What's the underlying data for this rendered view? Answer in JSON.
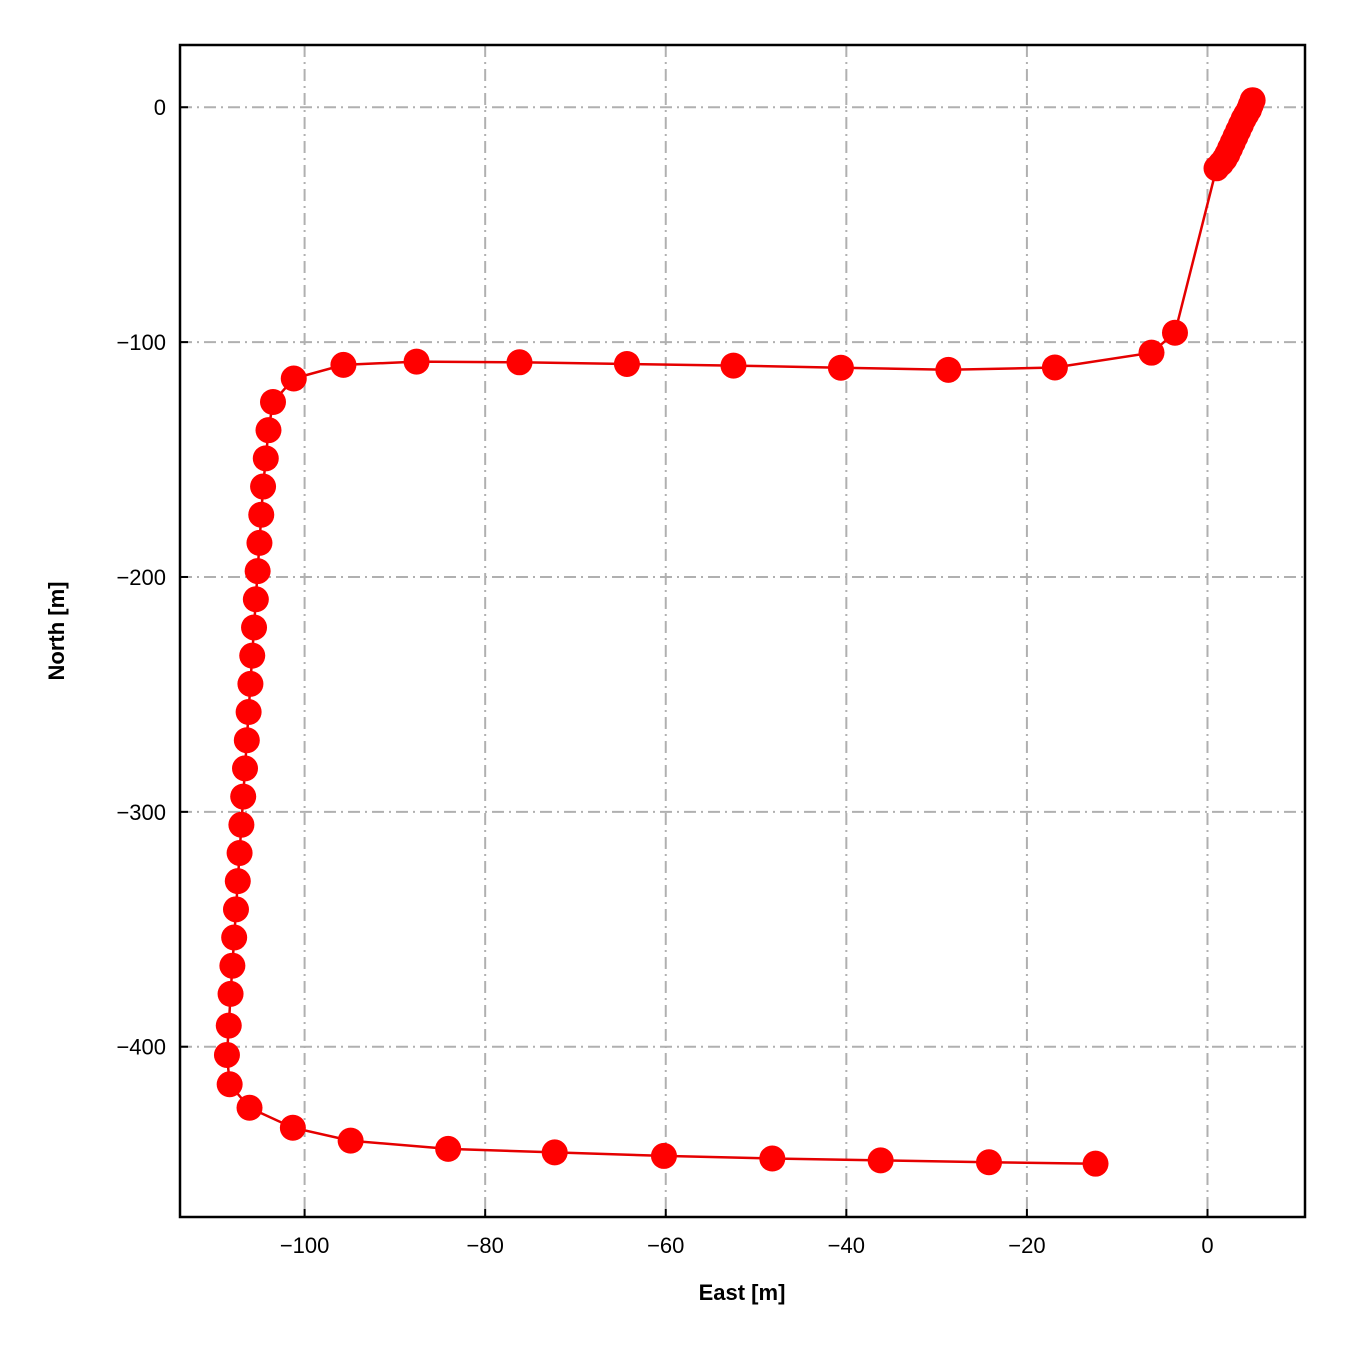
{
  "chart_data": {
    "type": "line",
    "title": "",
    "xlabel": "East [m]",
    "ylabel": "North [m]",
    "xlim": [
      -113.8,
      10.8
    ],
    "ylim": [
      -472.5,
      26.5
    ],
    "xticks": [
      -100,
      -80,
      -60,
      -40,
      -20,
      0
    ],
    "yticks": [
      0,
      -100,
      -200,
      -300,
      -400
    ],
    "xtick_labels": [
      "−100",
      "−80",
      "−60",
      "−40",
      "−20",
      "0"
    ],
    "ytick_labels": [
      "0",
      "−100",
      "−200",
      "−300",
      "−400"
    ],
    "grid": true,
    "series": [
      {
        "color": "#ff0000",
        "line_color": "#e50000",
        "marker": "circle",
        "points": [
          [
            5.0,
            3.0
          ],
          [
            4.8,
            1.0
          ],
          [
            4.6,
            -1.0
          ],
          [
            4.3,
            -3.0
          ],
          [
            4.0,
            -5.0
          ],
          [
            3.7,
            -7.5
          ],
          [
            3.4,
            -10.0
          ],
          [
            3.1,
            -12.5
          ],
          [
            2.8,
            -15.0
          ],
          [
            2.5,
            -17.5
          ],
          [
            2.2,
            -20.0
          ],
          [
            1.9,
            -22.0
          ],
          [
            1.5,
            -24.0
          ],
          [
            1.0,
            -26.0
          ],
          [
            -3.6,
            -96.0
          ],
          [
            -6.2,
            -104.5
          ],
          [
            -16.9,
            -110.8
          ],
          [
            -28.7,
            -111.8
          ],
          [
            -40.6,
            -110.9
          ],
          [
            -52.5,
            -110.0
          ],
          [
            -64.3,
            -109.3
          ],
          [
            -76.2,
            -108.6
          ],
          [
            -87.6,
            -108.3
          ],
          [
            -95.7,
            -109.7
          ],
          [
            -101.2,
            -115.5
          ],
          [
            -103.5,
            -125.5
          ],
          [
            -104.0,
            -137.5
          ],
          [
            -104.3,
            -149.5
          ],
          [
            -104.6,
            -161.5
          ],
          [
            -104.8,
            -173.5
          ],
          [
            -105.0,
            -185.5
          ],
          [
            -105.2,
            -197.5
          ],
          [
            -105.4,
            -209.5
          ],
          [
            -105.6,
            -221.5
          ],
          [
            -105.8,
            -233.5
          ],
          [
            -106.0,
            -245.5
          ],
          [
            -106.2,
            -257.5
          ],
          [
            -106.4,
            -269.5
          ],
          [
            -106.6,
            -281.5
          ],
          [
            -106.8,
            -293.5
          ],
          [
            -107.0,
            -305.5
          ],
          [
            -107.2,
            -317.5
          ],
          [
            -107.4,
            -329.5
          ],
          [
            -107.6,
            -341.5
          ],
          [
            -107.8,
            -353.5
          ],
          [
            -108.0,
            -365.5
          ],
          [
            -108.2,
            -377.5
          ],
          [
            -108.4,
            -391.0
          ],
          [
            -108.6,
            -403.5
          ],
          [
            -108.3,
            -416.0
          ],
          [
            -106.1,
            -426.0
          ],
          [
            -101.3,
            -434.5
          ],
          [
            -94.9,
            -440.0
          ],
          [
            -84.1,
            -443.5
          ],
          [
            -72.3,
            -445.0
          ],
          [
            -60.2,
            -446.5
          ],
          [
            -48.2,
            -447.6
          ],
          [
            -36.2,
            -448.4
          ],
          [
            -24.2,
            -449.2
          ],
          [
            -12.4,
            -449.8
          ]
        ]
      }
    ]
  }
}
